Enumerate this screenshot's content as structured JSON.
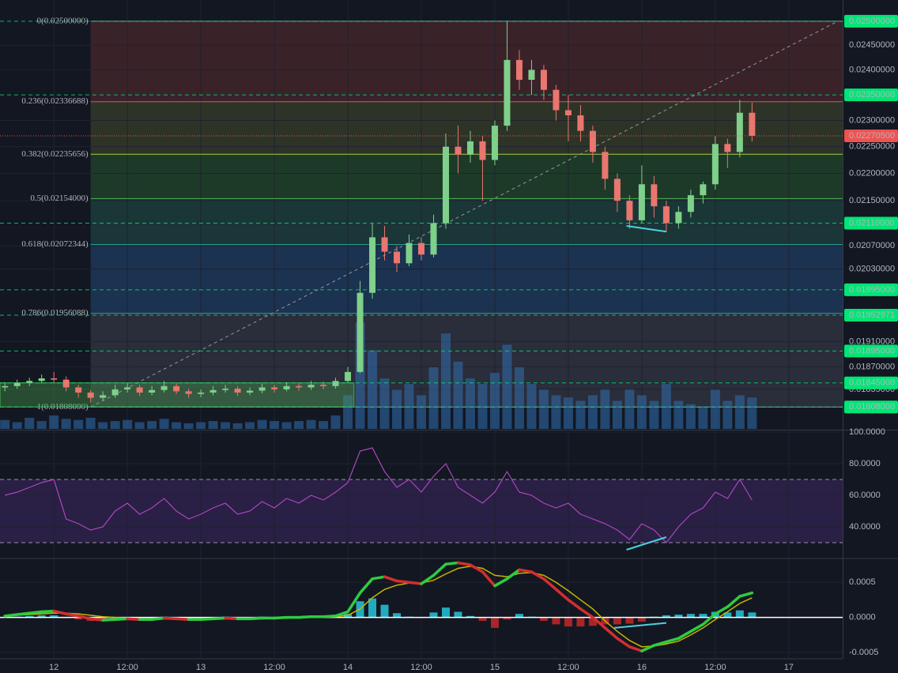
{
  "chart_data": [
    {
      "type": "candlestick",
      "log_scale": true,
      "xlim": [
        -8.8,
        128.8
      ],
      "ylim": [
        0.01775,
        0.02545
      ],
      "up_color": "#7fd08a",
      "down_color": "#e9766f",
      "volume_color": "#2f6fb0",
      "x": [
        -8,
        -6,
        -4,
        -2,
        0,
        2,
        4,
        6,
        8,
        10,
        12,
        14,
        16,
        18,
        20,
        22,
        24,
        26,
        28,
        30,
        32,
        34,
        36,
        38,
        40,
        42,
        44,
        46,
        48,
        50,
        52,
        54,
        56,
        58,
        60,
        62,
        64,
        66,
        68,
        70,
        72,
        74,
        76,
        78,
        80,
        82,
        84,
        86,
        88,
        90,
        92,
        94,
        96,
        98,
        100,
        102,
        104,
        106,
        108,
        110,
        112,
        114
      ],
      "open": [
        0.01838,
        0.0184,
        0.01845,
        0.01848,
        0.01852,
        0.0185,
        0.01838,
        0.0183,
        0.01822,
        0.01826,
        0.01835,
        0.01838,
        0.0183,
        0.01834,
        0.0184,
        0.01832,
        0.01828,
        0.0183,
        0.01834,
        0.01836,
        0.0183,
        0.01833,
        0.01838,
        0.01835,
        0.0184,
        0.01838,
        0.01842,
        0.0184,
        0.01848,
        0.01862,
        0.0199,
        0.02085,
        0.0206,
        0.0204,
        0.02075,
        0.02055,
        0.0211,
        0.0225,
        0.02235,
        0.0226,
        0.02225,
        0.0229,
        0.0242,
        0.0238,
        0.024,
        0.0236,
        0.0232,
        0.0231,
        0.0228,
        0.0224,
        0.0219,
        0.0215,
        0.02115,
        0.0218,
        0.0214,
        0.0211,
        0.0213,
        0.0216,
        0.0218,
        0.02255,
        0.0224,
        0.02315
      ],
      "high": [
        0.01846,
        0.0185,
        0.01853,
        0.01858,
        0.01862,
        0.01855,
        0.01842,
        0.01834,
        0.01832,
        0.01842,
        0.01845,
        0.01842,
        0.0184,
        0.01848,
        0.01845,
        0.01836,
        0.01835,
        0.0184,
        0.01842,
        0.0184,
        0.01838,
        0.01844,
        0.01842,
        0.01846,
        0.01845,
        0.01848,
        0.01847,
        0.01853,
        0.0187,
        0.0201,
        0.0211,
        0.02105,
        0.0207,
        0.0209,
        0.02085,
        0.02125,
        0.02275,
        0.0229,
        0.0228,
        0.0227,
        0.023,
        0.025,
        0.0244,
        0.0242,
        0.0241,
        0.0237,
        0.0235,
        0.0233,
        0.0229,
        0.0225,
        0.022,
        0.0216,
        0.02215,
        0.02195,
        0.0215,
        0.0214,
        0.0217,
        0.02185,
        0.0227,
        0.02265,
        0.0234,
        0.02335
      ],
      "low": [
        0.01832,
        0.01836,
        0.0184,
        0.01844,
        0.01845,
        0.01832,
        0.01822,
        0.01815,
        0.01818,
        0.01822,
        0.0183,
        0.01825,
        0.01826,
        0.0183,
        0.01828,
        0.01822,
        0.01823,
        0.01826,
        0.0183,
        0.01825,
        0.01826,
        0.01829,
        0.0183,
        0.01832,
        0.01833,
        0.01834,
        0.01835,
        0.01836,
        0.01845,
        0.0186,
        0.0198,
        0.02045,
        0.02025,
        0.02035,
        0.02045,
        0.0205,
        0.021,
        0.022,
        0.0222,
        0.0215,
        0.02215,
        0.0228,
        0.0236,
        0.0235,
        0.0234,
        0.023,
        0.0226,
        0.0226,
        0.0222,
        0.0217,
        0.0213,
        0.021,
        0.0211,
        0.0212,
        0.02095,
        0.021,
        0.0212,
        0.02145,
        0.0217,
        0.0221,
        0.0223,
        0.0226
      ],
      "close": [
        0.0184,
        0.01845,
        0.01848,
        0.01852,
        0.0185,
        0.01838,
        0.0183,
        0.01822,
        0.01826,
        0.01835,
        0.01838,
        0.0183,
        0.01834,
        0.0184,
        0.01832,
        0.01828,
        0.0183,
        0.01834,
        0.01836,
        0.0183,
        0.01833,
        0.01838,
        0.01835,
        0.0184,
        0.01838,
        0.01842,
        0.0184,
        0.01848,
        0.01862,
        0.0199,
        0.02085,
        0.0206,
        0.0204,
        0.02075,
        0.02055,
        0.0211,
        0.0225,
        0.02235,
        0.0226,
        0.02225,
        0.0229,
        0.0242,
        0.0238,
        0.024,
        0.0236,
        0.0232,
        0.0231,
        0.0228,
        0.0224,
        0.0219,
        0.0215,
        0.02115,
        0.0218,
        0.0214,
        0.0211,
        0.0213,
        0.0216,
        0.0218,
        0.02255,
        0.0224,
        0.02315,
        0.022705
      ],
      "volume": [
        8,
        6,
        10,
        7,
        12,
        9,
        8,
        10,
        6,
        7,
        8,
        6,
        7,
        9,
        6,
        5,
        6,
        7,
        6,
        5,
        6,
        8,
        7,
        6,
        7,
        8,
        7,
        12,
        30,
        95,
        70,
        45,
        35,
        40,
        30,
        55,
        85,
        60,
        45,
        40,
        50,
        75,
        55,
        40,
        35,
        30,
        28,
        25,
        30,
        35,
        25,
        35,
        30,
        25,
        40,
        25,
        22,
        20,
        35,
        25,
        30,
        28
      ],
      "yticks": [
        {
          "value": 0.0245,
          "label": "0.02450000"
        },
        {
          "value": 0.024,
          "label": "0.02400000"
        },
        {
          "value": 0.023,
          "label": "0.02300000"
        },
        {
          "value": 0.0225,
          "label": "0.02250000"
        },
        {
          "value": 0.022,
          "label": "0.02200000"
        },
        {
          "value": 0.0215,
          "label": "0.02150000"
        },
        {
          "value": 0.0207,
          "label": "0.02070000"
        },
        {
          "value": 0.0203,
          "label": "0.02030000"
        },
        {
          "value": 0.0191,
          "label": "0.01910000"
        },
        {
          "value": 0.0187,
          "label": "0.01870000"
        },
        {
          "value": 0.01835,
          "label": "0.01835000"
        }
      ],
      "fib_x": [
        6,
        128.8
      ],
      "fib_levels": [
        {
          "value": 0.025,
          "label": "0(0.02500000)",
          "color": "#8a8f9c",
          "fill": "#3a2229"
        },
        {
          "value": 0.02336688,
          "label": "0.236(0.02336688)",
          "color": "#e0505a",
          "fill": "#2d3427"
        },
        {
          "value": 0.02235656,
          "label": "0.382(0.02235656)",
          "color": "#a6c94a",
          "fill": "#1d3a29"
        },
        {
          "value": 0.02154,
          "label": "0.5(0.02154000)",
          "color": "#4caf50",
          "fill": "#1b3637"
        },
        {
          "value": 0.02072344,
          "label": "0.618(0.02072344)",
          "color": "#26a69a",
          "fill": "#1b3250"
        },
        {
          "value": 0.01956088,
          "label": "0.786(0.01956088)",
          "color": "#3f8fb0",
          "fill": "#2a2d3a"
        },
        {
          "value": 0.01808,
          "label": "1(0.01808000)",
          "color": "#8a8f9c"
        }
      ],
      "trend_line": {
        "x": [
          6,
          128
        ],
        "y": [
          0.01808,
          0.025
        ],
        "color": "#9598a1"
      },
      "price_lines": {
        "color": "#00e676",
        "values": [
          0.025,
          0.0235,
          0.0211,
          0.01995,
          0.01952971,
          0.01895,
          0.01845,
          0.01808
        ],
        "value_labels": [
          "0.02500000",
          "0.02350000",
          "0.02110000",
          "0.01995000",
          "0.01952971",
          "0.01895000",
          "0.01845000",
          "0.01808000"
        ]
      },
      "current_price": {
        "value": 0.022705,
        "label": "0.02270500",
        "color": "#ef5350"
      },
      "box": {
        "x": [
          -8.8,
          49
        ],
        "y": [
          0.01808,
          0.01845
        ],
        "color": "#4caf50"
      },
      "divergence": {
        "x": [
          93.5,
          100
        ],
        "y": [
          0.02105,
          0.02095
        ],
        "color": "#4dd0e1"
      }
    },
    {
      "type": "line",
      "xlim": [
        -8.8,
        128.8
      ],
      "ylim": [
        20.5,
        100.5
      ],
      "color": "#ab47bc",
      "band_color": "#2a1f45",
      "levels": [
        70,
        30
      ],
      "x": [
        -8,
        -6,
        -4,
        -2,
        0,
        2,
        4,
        6,
        8,
        10,
        12,
        14,
        16,
        18,
        20,
        22,
        24,
        26,
        28,
        30,
        32,
        34,
        36,
        38,
        40,
        42,
        44,
        46,
        48,
        50,
        52,
        54,
        56,
        58,
        60,
        62,
        64,
        66,
        68,
        70,
        72,
        74,
        76,
        78,
        80,
        82,
        84,
        86,
        88,
        90,
        92,
        94,
        96,
        98,
        100,
        102,
        104,
        106,
        108,
        110,
        112,
        114
      ],
      "values": [
        60,
        62,
        65,
        68,
        70,
        45,
        42,
        38,
        40,
        50,
        55,
        48,
        52,
        58,
        50,
        45,
        48,
        52,
        55,
        48,
        50,
        56,
        52,
        58,
        55,
        60,
        57,
        62,
        68,
        88,
        90,
        75,
        65,
        70,
        62,
        72,
        80,
        65,
        60,
        55,
        62,
        75,
        62,
        60,
        55,
        52,
        55,
        48,
        45,
        42,
        38,
        32,
        42,
        38,
        30,
        40,
        48,
        52,
        62,
        58,
        70,
        57
      ],
      "yticks": [
        {
          "value": 100,
          "label": "100.0000"
        },
        {
          "value": 80,
          "label": "80.0000"
        },
        {
          "value": 60,
          "label": "60.0000"
        },
        {
          "value": 40,
          "label": "40.0000"
        }
      ],
      "divergence": {
        "x": [
          93.5,
          100
        ],
        "y": [
          25.5,
          33.5
        ],
        "color": "#4dd0e1"
      }
    },
    {
      "type": "macd",
      "xlim": [
        -8.8,
        128.8
      ],
      "ylim": [
        -0.00058,
        0.00083
      ],
      "up_color": "#2ecc40",
      "down_color": "#d32f2f",
      "signal_color": "#c8b400",
      "hist_up_color": "#26c6da",
      "hist_down_color": "#c62828",
      "x": [
        -8,
        -6,
        -4,
        -2,
        0,
        2,
        4,
        6,
        8,
        10,
        12,
        14,
        16,
        18,
        20,
        22,
        24,
        26,
        28,
        30,
        32,
        34,
        36,
        38,
        40,
        42,
        44,
        46,
        48,
        50,
        52,
        54,
        56,
        58,
        60,
        62,
        64,
        66,
        68,
        70,
        72,
        74,
        76,
        78,
        80,
        82,
        84,
        86,
        88,
        90,
        92,
        94,
        96,
        98,
        100,
        102,
        104,
        106,
        108,
        110,
        112,
        114
      ],
      "macd": [
        2e-05,
        4e-05,
        6e-05,
        8e-05,
        9e-05,
        5e-05,
        2e-05,
        -2e-05,
        -4e-05,
        -3e-05,
        -2e-05,
        -3e-05,
        -3e-05,
        -1e-05,
        -2e-05,
        -3e-05,
        -3e-05,
        -2e-05,
        -1e-05,
        -2e-05,
        -2e-05,
        -1e-05,
        -1e-05,
        0,
        0,
        1e-05,
        1e-05,
        2e-05,
        8e-05,
        0.00035,
        0.00055,
        0.00058,
        0.00052,
        0.0005,
        0.00048,
        0.0006,
        0.00076,
        0.00078,
        0.00075,
        0.00065,
        0.00045,
        0.00055,
        0.00068,
        0.00065,
        0.00055,
        0.0004,
        0.00025,
        0.00012,
        0,
        -0.00015,
        -0.0003,
        -0.00042,
        -0.00048,
        -0.0004,
        -0.00035,
        -0.0003,
        -0.0002,
        -0.0001,
        5e-05,
        0.00015,
        0.0003,
        0.00035
      ],
      "signal": [
        2e-05,
        3e-05,
        4e-05,
        5e-05,
        6e-05,
        6e-05,
        5e-05,
        3e-05,
        1e-05,
        0,
        -1e-05,
        -2e-05,
        -2e-05,
        -2e-05,
        -2e-05,
        -2e-05,
        -3e-05,
        -2e-05,
        -2e-05,
        -2e-05,
        -2e-05,
        -2e-05,
        -1e-05,
        -1e-05,
        0,
        0,
        1e-05,
        1e-05,
        3e-05,
        0.00012,
        0.00028,
        0.0004,
        0.00046,
        0.00049,
        0.00049,
        0.00053,
        0.00062,
        0.0007,
        0.00073,
        0.0007,
        0.0006,
        0.00058,
        0.00063,
        0.00064,
        0.0006,
        0.0005,
        0.00038,
        0.00025,
        0.00012,
        -5e-05,
        -0.0002,
        -0.00033,
        -0.00042,
        -0.00041,
        -0.00038,
        -0.00034,
        -0.00025,
        -0.00015,
        -3e-05,
        8e-05,
        0.0002,
        0.00028
      ],
      "histogram": [
        0,
        1e-05,
        2e-05,
        3e-05,
        3e-05,
        -1e-05,
        -3e-05,
        -5e-05,
        -5e-05,
        -3e-05,
        -1e-05,
        -1e-05,
        -1e-05,
        1e-05,
        0,
        -1e-05,
        0,
        0,
        1e-05,
        0,
        0,
        1e-05,
        0,
        1e-05,
        0,
        1e-05,
        0,
        1e-05,
        5e-05,
        0.00023,
        0.00027,
        0.00018,
        6e-05,
        1e-05,
        -1e-05,
        7e-05,
        0.00014,
        8e-05,
        2e-05,
        -5e-05,
        -0.00015,
        -3e-05,
        5e-05,
        1e-05,
        -5e-05,
        -0.0001,
        -0.00013,
        -0.00013,
        -0.00012,
        -0.0001,
        -0.0001,
        -9e-05,
        -6e-05,
        1e-05,
        3e-05,
        4e-05,
        5e-05,
        5e-05,
        8e-05,
        7e-05,
        0.0001,
        7e-05
      ],
      "yticks": [
        {
          "value": 0.0005,
          "label": "0.0005"
        },
        {
          "value": 0,
          "label": "0.0000"
        },
        {
          "value": -0.0005,
          "label": "-0.0005"
        }
      ],
      "xticks": [
        {
          "value": 0,
          "label": "12"
        },
        {
          "value": 12,
          "label": "12:00"
        },
        {
          "value": 24,
          "label": "13"
        },
        {
          "value": 36,
          "label": "12:00"
        },
        {
          "value": 48,
          "label": "14"
        },
        {
          "value": 60,
          "label": "12:00"
        },
        {
          "value": 72,
          "label": "15"
        },
        {
          "value": 84,
          "label": "12:00"
        },
        {
          "value": 96,
          "label": "16"
        },
        {
          "value": 108,
          "label": "12:00"
        },
        {
          "value": 120,
          "label": "17"
        }
      ],
      "divergence": {
        "x": [
          91.5,
          100
        ],
        "y": [
          -0.00015,
          -8e-05
        ],
        "color": "#4dd0e1"
      }
    }
  ]
}
